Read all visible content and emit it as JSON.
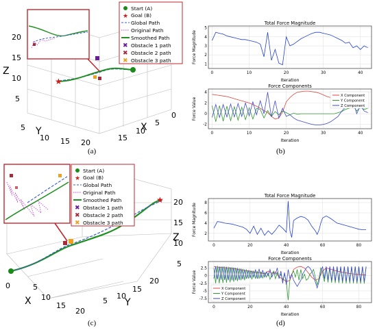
{
  "captions": {
    "a": "(a)",
    "b": "(b)",
    "c": "(c)",
    "d": "(d)"
  },
  "legend_labels": [
    "Start (A)",
    "Goal (B)",
    "Global Path",
    "Original Path",
    "Smoothed Path",
    "Obstacle 1 path",
    "Obstacle 2 path",
    "Obstacle 3 path"
  ],
  "colors": {
    "start": "#1b8a1b",
    "goal": "#d41818",
    "global": "#3b5bd6",
    "original": "#c33bd0",
    "smoothed": "#1f8f1f",
    "obs1": "#6a1b9a",
    "obs2": "#a52a3a",
    "obs3": "#f0a020",
    "force": "#1f3fd6",
    "x_comp": "#e0413c",
    "y_comp": "#2a9a2a",
    "z_comp": "#3b47d6",
    "inset_border": "#c2272d"
  },
  "panel_a": {
    "axis_labels": {
      "x": "X",
      "y": "Y",
      "z": "Z"
    },
    "z_ticks": [
      "5",
      "10",
      "15",
      "20"
    ],
    "y_ticks": [
      "5",
      "10",
      "15",
      "20"
    ],
    "x_ticks": [
      "15",
      "10",
      "5",
      "0"
    ]
  },
  "panel_c": {
    "axis_labels": {
      "x": "X",
      "y": "Y",
      "z": "Z"
    },
    "z_ticks": [
      "20",
      "15",
      "10",
      "5"
    ],
    "x_ticks": [
      "0",
      "5",
      "10",
      "15",
      "20"
    ],
    "y_ticks": [
      "5",
      "10",
      "15",
      "20"
    ]
  },
  "chart_data": [
    {
      "panel": "b-top",
      "type": "line",
      "title": "Total Force Magnitude",
      "xlabel": "Iteration",
      "ylabel": "Force Magnitude",
      "xlim": [
        -1,
        43
      ],
      "ylim": [
        0.5,
        5.2
      ],
      "xticks": [
        0,
        10,
        20,
        30,
        40
      ],
      "yticks": [
        1,
        2,
        3,
        4,
        5
      ],
      "x": [
        0,
        1,
        2,
        3,
        4,
        5,
        6,
        7,
        8,
        9,
        10,
        11,
        12,
        13,
        14,
        15,
        16,
        17,
        18,
        19,
        20,
        21,
        22,
        23,
        24,
        25,
        26,
        27,
        28,
        29,
        30,
        31,
        32,
        33,
        34,
        35,
        36,
        37,
        38,
        39,
        40,
        41,
        42
      ],
      "values": [
        3.6,
        4.5,
        4.4,
        4.3,
        4.1,
        4.0,
        3.9,
        3.8,
        3.7,
        3.7,
        3.6,
        3.5,
        3.4,
        3.2,
        1.8,
        4.5,
        1.4,
        2.6,
        1.1,
        0.9,
        4.0,
        3.0,
        3.2,
        3.5,
        3.8,
        4.0,
        4.2,
        4.4,
        4.5,
        4.5,
        4.4,
        4.3,
        4.2,
        4.0,
        3.8,
        3.6,
        3.3,
        3.4,
        2.8,
        3.0,
        2.6,
        3.0,
        2.8
      ]
    },
    {
      "panel": "b-bottom",
      "type": "line",
      "title": "Force Components",
      "xlabel": "Iteration",
      "ylabel": "Force Value",
      "xlim": [
        -1,
        43
      ],
      "ylim": [
        -2.8,
        4.6
      ],
      "xticks": [
        0,
        10,
        20,
        30,
        40
      ],
      "yticks": [
        -2,
        0,
        2,
        4
      ],
      "x": [
        0,
        1,
        2,
        3,
        4,
        5,
        6,
        7,
        8,
        9,
        10,
        11,
        12,
        13,
        14,
        15,
        16,
        17,
        18,
        19,
        20,
        21,
        22,
        23,
        24,
        25,
        26,
        27,
        28,
        29,
        30,
        31,
        32,
        33,
        34,
        35,
        36,
        37,
        38,
        39,
        40,
        41,
        42
      ],
      "legend": [
        "X Component",
        "Y Component",
        "Z Component"
      ],
      "series": [
        {
          "name": "X Component",
          "values": [
            3.6,
            3.5,
            3.4,
            3.3,
            3.2,
            3.0,
            2.8,
            2.6,
            2.4,
            2.2,
            2.0,
            1.7,
            1.4,
            1.0,
            0.6,
            0.2,
            -0.5,
            -1.0,
            -0.8,
            0.3,
            2.2,
            3.0,
            3.6,
            4.0,
            4.1,
            4.2,
            4.2,
            4.1,
            4.0,
            3.8,
            3.5,
            3.2,
            3.0,
            2.8,
            2.6,
            2.4,
            2.2,
            2.2,
            1.8,
            1.6,
            1.5,
            1.3,
            1.2
          ]
        },
        {
          "name": "Y Component",
          "values": [
            1.5,
            -1.5,
            1.5,
            -1.4,
            1.4,
            -1.3,
            1.3,
            -1.2,
            1.2,
            -1.1,
            1.1,
            -1.0,
            1.0,
            0.8,
            -0.8,
            0.6,
            -0.5,
            0.4,
            -0.2,
            0.5,
            0.2,
            -0.2,
            0.1,
            -0.1,
            0.0,
            0.0,
            0.0,
            0.0,
            0.0,
            0.0,
            0.0,
            0.0,
            0.0,
            0.0,
            0.2,
            0.4,
            0.8,
            1.0,
            1.5,
            0.5,
            1.2,
            0.8,
            1.0
          ]
        },
        {
          "name": "Z Component",
          "values": [
            -0.7,
            1.7,
            -0.7,
            1.7,
            -0.6,
            1.8,
            -0.6,
            1.9,
            -0.5,
            2.0,
            -0.4,
            2.2,
            -0.2,
            2.4,
            0.0,
            4.0,
            -0.6,
            2.4,
            -0.8,
            1.0,
            -0.5,
            -0.2,
            -0.8,
            -1.2,
            -1.4,
            -1.6,
            -1.8,
            -2.0,
            -2.1,
            -2.1,
            -2.0,
            -1.8,
            -1.5,
            -1.0,
            -0.5,
            0.5,
            1.2,
            2.0,
            2.5,
            0.0,
            1.5,
            0.5,
            0.2
          ]
        }
      ]
    },
    {
      "panel": "d-top",
      "type": "line",
      "title": "Total Force Magnitude",
      "xlabel": "Iteration",
      "ylabel": "Force Magnitude",
      "xlim": [
        -3,
        87
      ],
      "ylim": [
        0.5,
        8.8
      ],
      "xticks": [
        0,
        20,
        40,
        60,
        80
      ],
      "yticks": [
        2,
        4,
        6,
        8
      ],
      "x": [
        0,
        2,
        4,
        6,
        8,
        10,
        12,
        14,
        16,
        18,
        20,
        22,
        24,
        26,
        28,
        30,
        32,
        34,
        36,
        38,
        40,
        41,
        42,
        43,
        44,
        46,
        48,
        50,
        52,
        54,
        56,
        57,
        58,
        59,
        60,
        62,
        64,
        66,
        68,
        70,
        72,
        74,
        76,
        78,
        80,
        82,
        84
      ],
      "values": [
        3.0,
        4.3,
        4.2,
        4.0,
        3.9,
        3.8,
        3.6,
        3.4,
        3.2,
        2.8,
        2.0,
        3.4,
        1.8,
        3.0,
        1.6,
        2.5,
        1.8,
        2.6,
        3.6,
        3.0,
        2.2,
        8.3,
        2.5,
        1.2,
        4.5,
        5.0,
        5.3,
        5.1,
        4.6,
        3.4,
        2.5,
        1.8,
        2.6,
        4.0,
        5.0,
        5.4,
        5.0,
        4.5,
        4.0,
        3.8,
        3.6,
        3.4,
        3.2,
        3.0,
        2.8,
        2.7,
        2.7
      ]
    },
    {
      "panel": "d-bottom",
      "type": "line",
      "title": "Force Components",
      "xlabel": "Iteration",
      "ylabel": "Force Value",
      "xlim": [
        -3,
        87
      ],
      "ylim": [
        -8.8,
        4.6
      ],
      "xticks": [
        0,
        20,
        40,
        60,
        80
      ],
      "yticks": [
        -7.5,
        -5.0,
        -2.5,
        0.0,
        2.5
      ],
      "legend": [
        "X Component",
        "Y Component",
        "Z Component"
      ],
      "series": [
        {
          "name": "X Component",
          "x": [
            0,
            2,
            4,
            6,
            8,
            10,
            12,
            14,
            16,
            18,
            20,
            22,
            24,
            26,
            28,
            30,
            32,
            34,
            36,
            38,
            40,
            42,
            44,
            46,
            48,
            50,
            52,
            54,
            56,
            58,
            60,
            62,
            64,
            66,
            68,
            70,
            72,
            74,
            76,
            78,
            80,
            82,
            84
          ],
          "values": [
            3.0,
            2.8,
            2.7,
            2.6,
            2.5,
            2.3,
            2.2,
            2.0,
            1.8,
            1.6,
            1.4,
            1.2,
            1.0,
            1.0,
            0.5,
            1.5,
            0.8,
            1.2,
            -0.5,
            -1.0,
            -2.0,
            -1.5,
            2.0,
            2.8,
            3.0,
            2.5,
            1.0,
            -0.5,
            -1.5,
            -1.0,
            1.5,
            2.5,
            2.2,
            1.8,
            1.5,
            1.2,
            1.0,
            0.8,
            0.6,
            0.5,
            0.4,
            0.3,
            0.2
          ]
        },
        {
          "name": "Y Component",
          "x": [
            0,
            1,
            2,
            3,
            4,
            5,
            6,
            7,
            8,
            9,
            10,
            11,
            12,
            13,
            14,
            15,
            16,
            17,
            18,
            19,
            20,
            21,
            22,
            23,
            24,
            25,
            26,
            27,
            28,
            29,
            30,
            31,
            32,
            33,
            34,
            35,
            36,
            37,
            38,
            39,
            40,
            41,
            42,
            43,
            44,
            45,
            46,
            47,
            48,
            49,
            50,
            51,
            52,
            53,
            54,
            55,
            56,
            57,
            58,
            59,
            60,
            61,
            62,
            63,
            64,
            65,
            66,
            67,
            68,
            69,
            70,
            71,
            72,
            73,
            74,
            75,
            76,
            77,
            78,
            79,
            80,
            81,
            82,
            83,
            84
          ],
          "values": [
            2.5,
            -2.5,
            3.2,
            -2.5,
            3.0,
            -2.4,
            3.0,
            -2.3,
            2.9,
            -2.2,
            2.8,
            -2.0,
            2.6,
            -1.8,
            2.4,
            -1.5,
            2.2,
            -1.5,
            2.0,
            -1.0,
            1.8,
            -1.2,
            1.6,
            -1.0,
            1.5,
            -1.0,
            1.2,
            -0.8,
            1.0,
            -0.5,
            0.8,
            -1.2,
            0.5,
            1.5,
            -1.0,
            1.0,
            -0.5,
            0.5,
            -1.5,
            0.5,
            -2.0,
            -8.0,
            -1.0,
            0.5,
            1.5,
            -0.5,
            2.0,
            -1.5,
            2.0,
            -1.0,
            0.5,
            -1.5,
            -1.0,
            0.5,
            1.0,
            2.0,
            -0.5,
            -3.0,
            -1.0,
            2.5,
            1.0,
            -2.0,
            2.5,
            -2.2,
            2.6,
            -2.3,
            2.6,
            -2.4,
            2.7,
            -2.4,
            2.7,
            -2.5,
            2.7,
            -2.5,
            2.8,
            -2.5,
            2.8,
            -2.5,
            2.8,
            -2.6,
            2.8,
            -2.6,
            2.8,
            -2.6,
            2.8
          ]
        },
        {
          "name": "Z Component",
          "x": [
            0,
            1,
            2,
            3,
            4,
            5,
            6,
            7,
            8,
            9,
            10,
            11,
            12,
            13,
            14,
            15,
            16,
            17,
            18,
            19,
            20,
            21,
            22,
            23,
            24,
            25,
            26,
            27,
            28,
            29,
            30,
            31,
            32,
            33,
            34,
            35,
            36,
            37,
            38,
            39,
            40,
            41,
            42,
            43,
            44,
            45,
            46,
            47,
            48,
            49,
            50,
            51,
            52,
            53,
            54,
            55,
            56,
            57,
            58,
            59,
            60,
            61,
            62,
            63,
            64,
            65,
            66,
            67,
            68,
            69,
            70,
            71,
            72,
            73,
            74,
            75,
            76,
            77,
            78,
            79,
            80,
            81,
            82,
            83,
            84
          ],
          "values": [
            -1.0,
            3.0,
            -1.2,
            3.0,
            -1.3,
            3.0,
            -1.4,
            2.9,
            -1.5,
            2.8,
            -1.5,
            2.7,
            -1.5,
            2.5,
            -1.4,
            2.3,
            -1.2,
            2.0,
            -1.0,
            1.8,
            -0.8,
            1.5,
            -0.5,
            2.0,
            -1.0,
            2.2,
            -0.8,
            1.8,
            -0.5,
            1.2,
            0.0,
            2.0,
            -0.5,
            1.0,
            0.5,
            2.5,
            -1.0,
            1.5,
            -2.5,
            1.0,
            -3.0,
            2.0,
            -1.0,
            0.5,
            -1.5,
            -2.5,
            -3.5,
            -2.5,
            -1.5,
            0.5,
            1.5,
            2.5,
            3.0,
            2.5,
            1.5,
            0.0,
            -2.0,
            -4.0,
            -2.0,
            1.0,
            3.0,
            -1.0,
            3.0,
            -1.5,
            3.0,
            -1.6,
            3.0,
            -1.7,
            3.0,
            -1.8,
            3.0,
            -1.8,
            3.0,
            -1.9,
            3.0,
            -1.9,
            3.0,
            -2.0,
            3.0,
            -2.0,
            3.0,
            -2.0,
            3.0,
            -2.0,
            3.0
          ]
        }
      ]
    }
  ]
}
